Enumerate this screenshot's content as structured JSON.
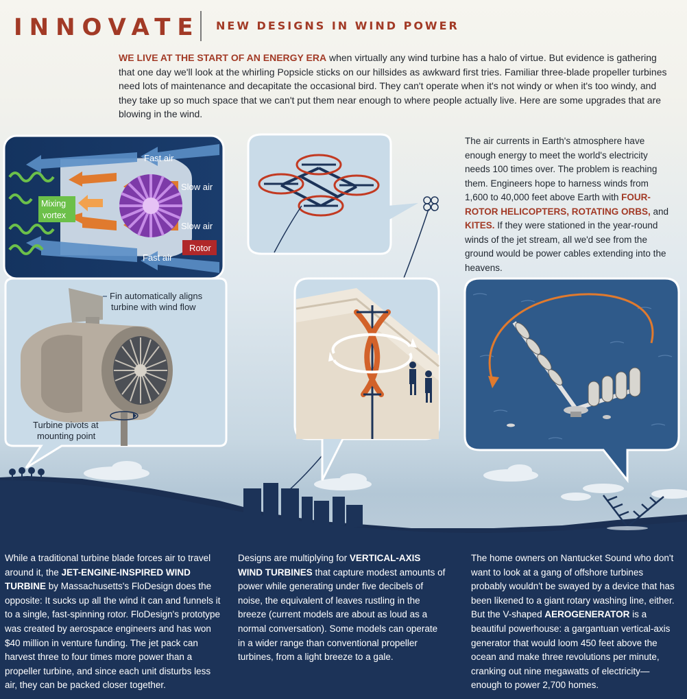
{
  "header": {
    "title": "INNOVATE",
    "subtitle": "NEW DESIGNS IN WIND POWER"
  },
  "intro": {
    "lead": "WE LIVE AT THE START OF AN ENERGY ERA",
    "body": " when virtually any wind turbine has a halo of virtue. But evidence is gathering that one day we'll look at the whirling Popsicle sticks on our hillsides as awkward first tries. Familiar three-blade propeller turbines need lots of maintenance and decapitate the occasional bird. They can't operate when it's not windy or when it's too windy, and they take up so much space that we can't put them near enough to where people actually live. Here are some upgrades that are blowing in the wind."
  },
  "airborne": {
    "part1": "The air currents in Earth's atmosphere have enough energy to meet the world's electricity needs 100 times over. The problem is reaching them. Engineers hope to harness winds from 1,600 to 40,000 feet above Earth with ",
    "highlight1": "FOUR-ROTOR HELICOPTERS, ROTATING ORBS,",
    "part2": " and ",
    "highlight2": "KITES.",
    "part3": " If they were stationed in the year-round winds of the jet stream, all we'd see from the ground would be power cables extending into the heavens."
  },
  "jet_diagram": {
    "fast_air_top": "Fast air",
    "slow_air_top": "Slow air",
    "mixing_line1": "Mixing",
    "mixing_line2": "vortex",
    "slow_air_bottom": "Slow air",
    "rotor": "Rotor",
    "fast_air_bottom": "Fast air"
  },
  "turbine_diagram": {
    "fin_line1": "Fin automatically aligns",
    "fin_line2": "turbine with wind flow",
    "pivot_line1": "Turbine pivots at",
    "pivot_line2": "mounting point"
  },
  "columns": {
    "jet": {
      "pre": "While a traditional turbine blade forces air to travel around it, the ",
      "bold": "JET-ENGINE-INSPIRED WIND TURBINE",
      "post": " by Massachusetts's FloDesign does the opposite: It sucks up all the wind it can and funnels it to a single, fast-spinning rotor. FloDesign's prototype was created by aerospace engineers and has won $40 million in venture funding. The jet pack can harvest three to four times more power than a propeller turbine, and since each unit disturbs less air, they can be packed closer together."
    },
    "vertical": {
      "pre": "Designs are multiplying for ",
      "bold": "VERTICAL-AXIS WIND TURBINES",
      "post": " that capture modest amounts of power while generating under five decibels of noise, the equivalent of leaves rustling in the breeze (current models are about as loud as a normal conversation). Some models can operate in a wider range than conventional propeller turbines, from a light breeze to a gale."
    },
    "aero": {
      "pre": "The home owners on Nantucket Sound who don't want to look at a gang of offshore turbines probably wouldn't be swayed by a device that has been likened to a giant rotary washing line, either. But the V-shaped ",
      "bold": "AEROGENERATOR",
      "post": " is a beautiful powerhouse: a gargantuan vertical-axis generator that would loom 450 feet above the ocean and make three revolutions per minute, cranking out nine megawatts of electricity—enough to power 2,700 homes."
    }
  },
  "colors": {
    "accent": "#a23a26",
    "navy": "#1c3358",
    "panel": "#c9dbe8",
    "orange": "#e07a2e",
    "green": "#6cc04a",
    "purple": "#8a4fb5"
  }
}
